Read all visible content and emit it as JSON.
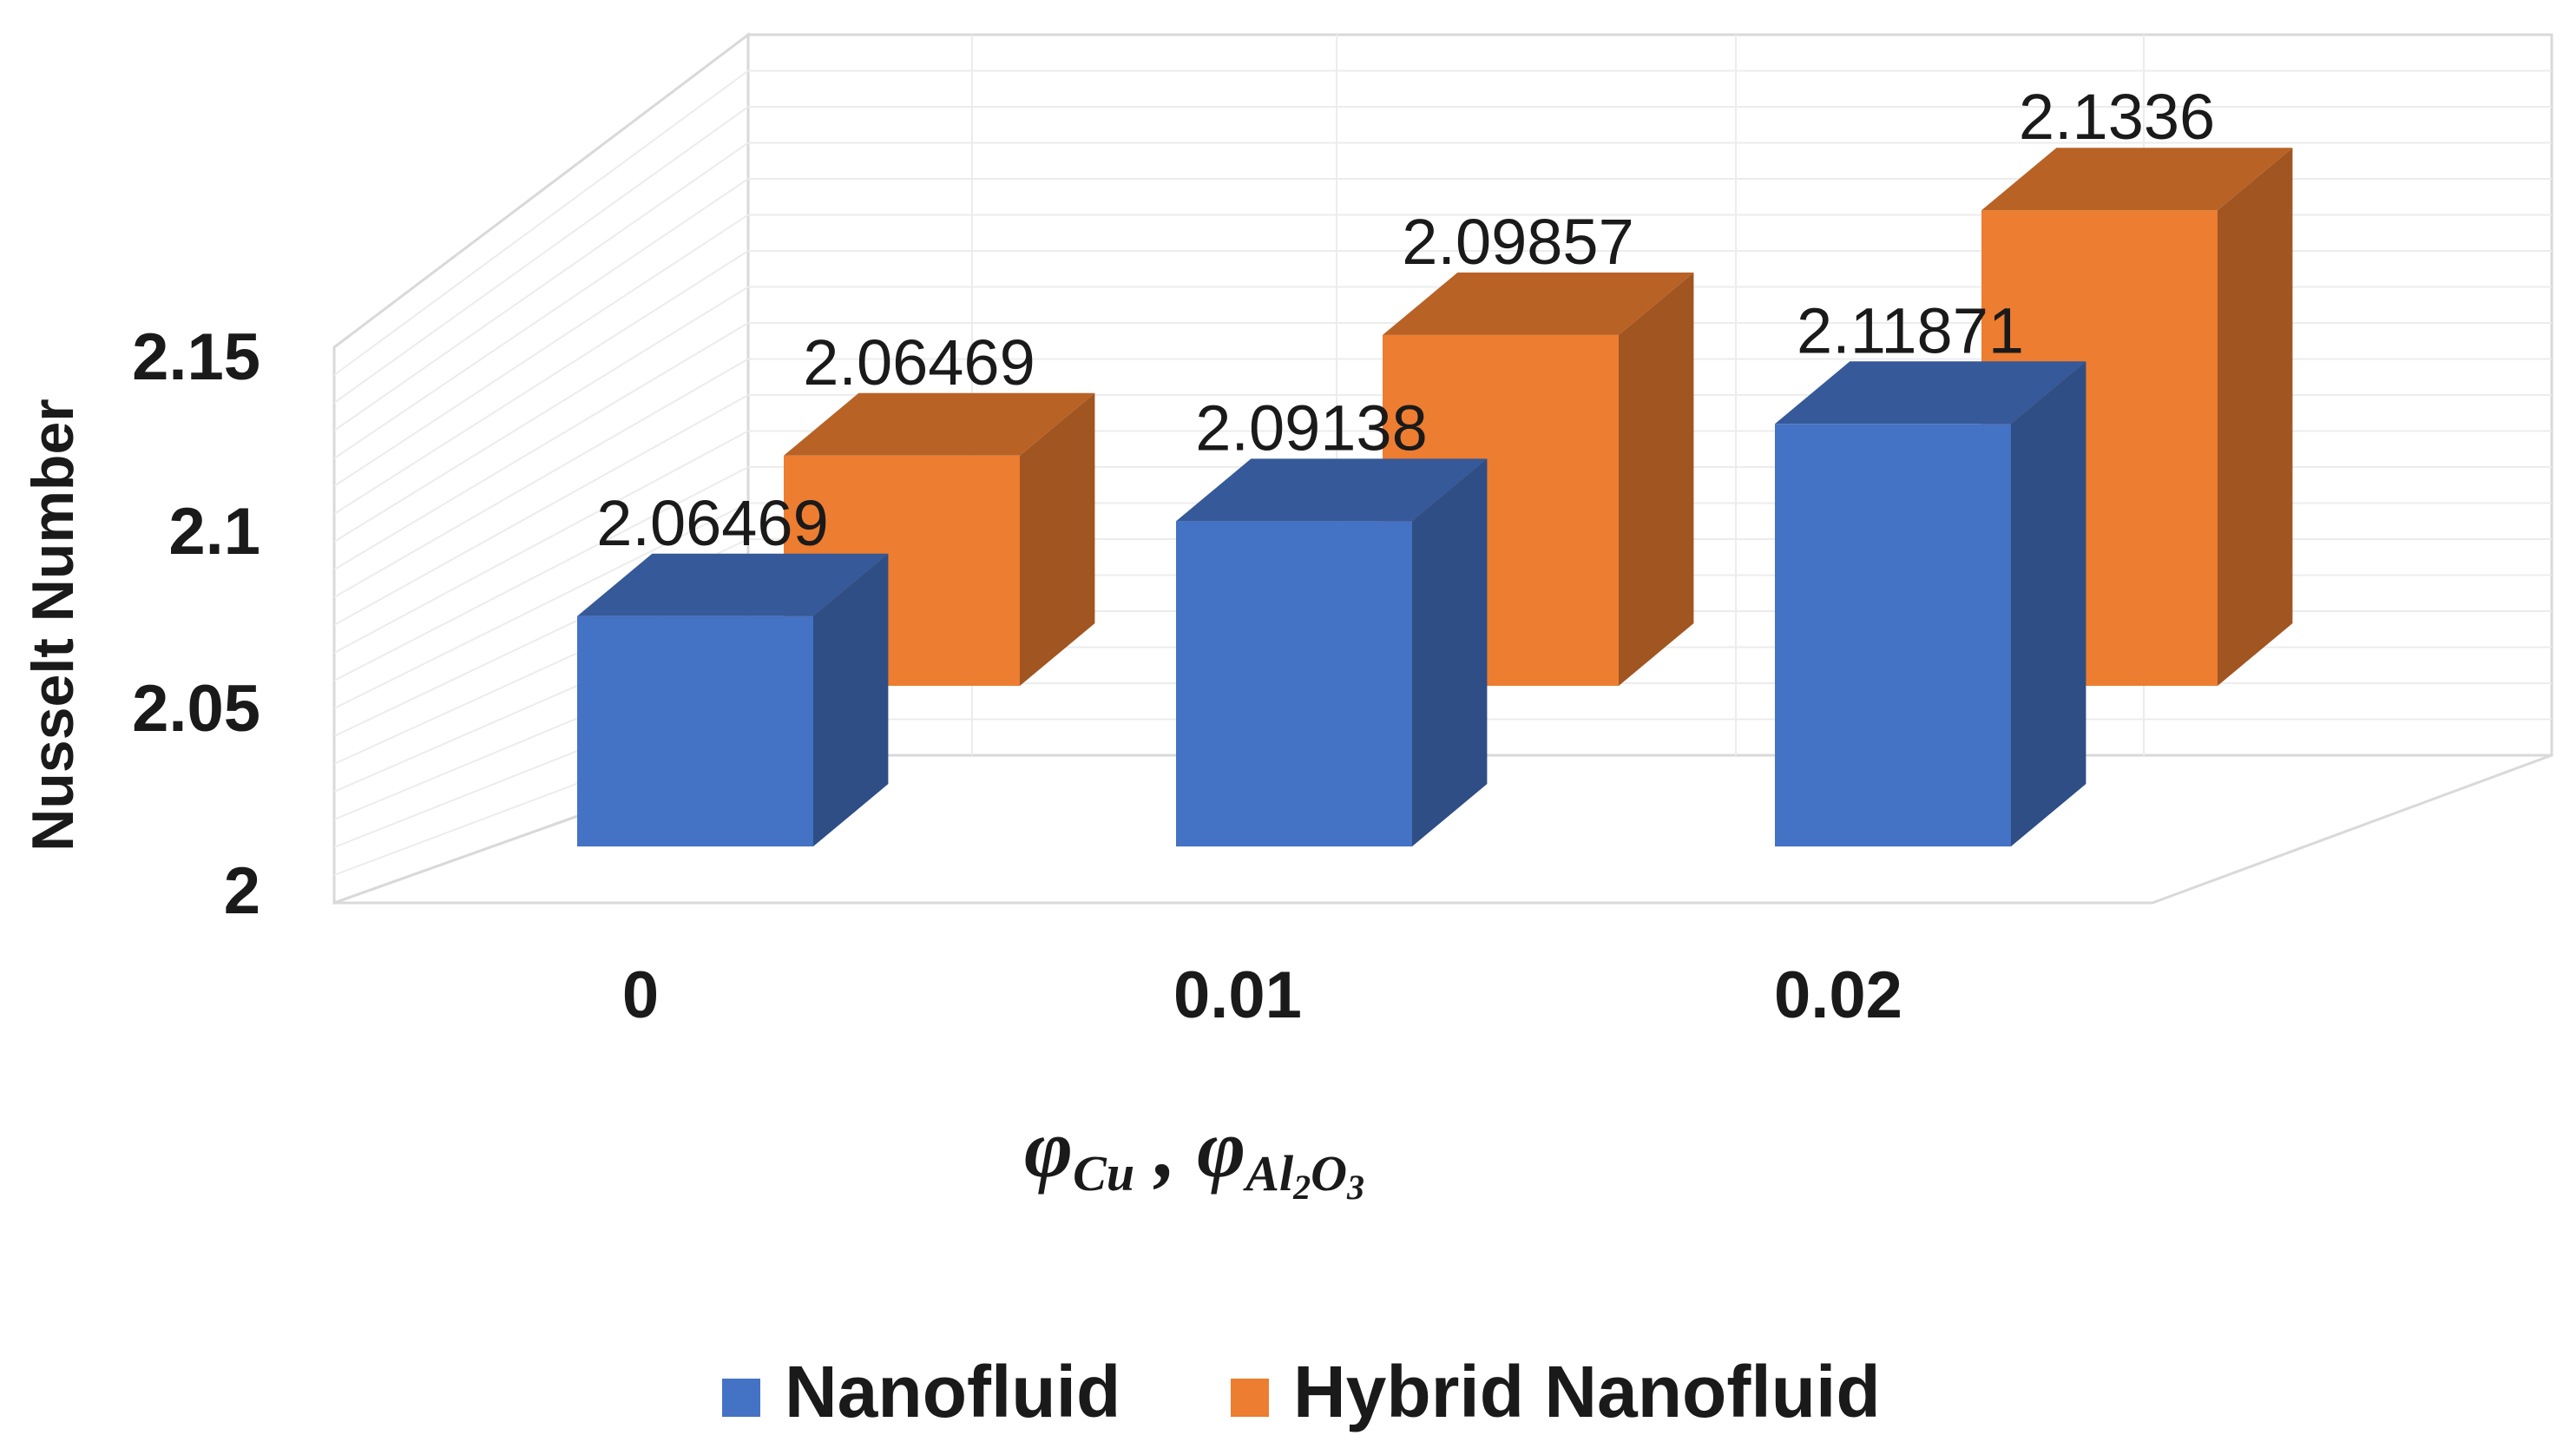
{
  "chart_data": {
    "type": "bar",
    "style": "3d-clustered-column",
    "categories": [
      "0",
      "0.01",
      "0.02"
    ],
    "series": [
      {
        "name": "Nanofluid",
        "color": "#4472C4",
        "values": [
          2.06469,
          2.09138,
          2.11871
        ],
        "labels": [
          "2.06469",
          "2.09138",
          "2.11871"
        ]
      },
      {
        "name": "Hybrid Nanofluid",
        "color": "#ED7D31",
        "values": [
          2.06469,
          2.09857,
          2.1336
        ],
        "labels": [
          "2.06469",
          "2.09857",
          "2.1336"
        ]
      }
    ],
    "ylabel": "Nusselt Number",
    "xlabel": {
      "phi": "φ",
      "sub1": "Cu",
      "sep": " , ",
      "sub2a": "Al",
      "sub2b": "2",
      "sub2c": "O",
      "sub2d": "3"
    },
    "y_ticks": [
      "2",
      "2.05",
      "2.1",
      "2.15"
    ],
    "ylim": [
      2,
      2.15
    ],
    "grid": true,
    "legend_position": "bottom"
  }
}
